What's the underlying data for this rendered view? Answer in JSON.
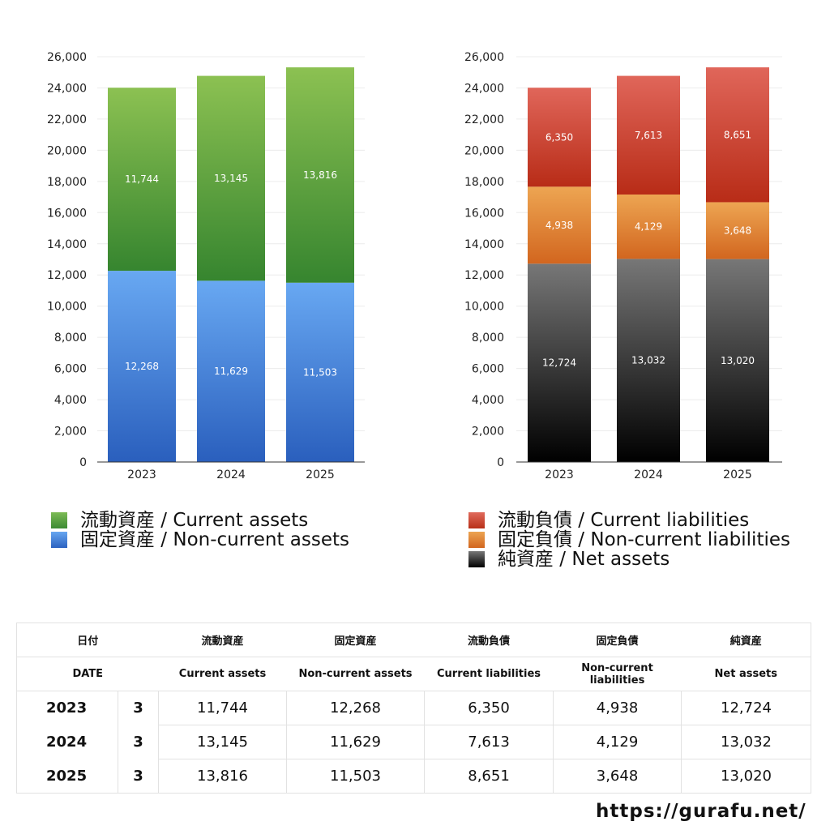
{
  "chart_data": [
    {
      "type": "bar",
      "stacked": true,
      "categories": [
        "2023",
        "2024",
        "2025"
      ],
      "ylim": [
        0,
        26000
      ],
      "yticks": [
        "0",
        "2,000",
        "4,000",
        "6,000",
        "8,000",
        "10,000",
        "12,000",
        "14,000",
        "16,000",
        "18,000",
        "20,000",
        "22,000",
        "24,000",
        "26,000"
      ],
      "grid": true,
      "series": [
        {
          "name": "固定資産 / Non-current assets",
          "values": [
            12268,
            11629,
            11503
          ],
          "labels": [
            "12,268",
            "11,629",
            "11,503"
          ],
          "colors": [
            "#68a8f2",
            "#2a5fbd"
          ]
        },
        {
          "name": "流動資産 / Current assets",
          "values": [
            11744,
            13145,
            13816
          ],
          "labels": [
            "11,744",
            "13,145",
            "13,816"
          ],
          "colors": [
            "#8cc152",
            "#36852f"
          ]
        }
      ],
      "legend": "bottom"
    },
    {
      "type": "bar",
      "stacked": true,
      "categories": [
        "2023",
        "2024",
        "2025"
      ],
      "ylim": [
        0,
        26000
      ],
      "yticks": [
        "0",
        "2,000",
        "4,000",
        "6,000",
        "8,000",
        "10,000",
        "12,000",
        "14,000",
        "16,000",
        "18,000",
        "20,000",
        "22,000",
        "24,000",
        "26,000"
      ],
      "grid": true,
      "series": [
        {
          "name": "純資産 / Net assets",
          "values": [
            12724,
            13032,
            13020
          ],
          "labels": [
            "12,724",
            "13,032",
            "13,020"
          ],
          "colors": [
            "#777777",
            "#000000"
          ]
        },
        {
          "name": "固定負債 / Non-current liabilities",
          "values": [
            4938,
            4129,
            3648
          ],
          "labels": [
            "4,938",
            "4,129",
            "3,648"
          ],
          "colors": [
            "#eda552",
            "#d2661f"
          ]
        },
        {
          "name": "流動負債 / Current liabilities",
          "values": [
            6350,
            7613,
            8651
          ],
          "labels": [
            "6,350",
            "7,613",
            "8,651"
          ],
          "colors": [
            "#e0665a",
            "#b82c17"
          ]
        }
      ],
      "legend": "bottom"
    }
  ],
  "legend_left": [
    {
      "label": "流動資産 / Current assets",
      "color": "#4c9a3e"
    },
    {
      "label": "固定資産 / Non-current assets",
      "color": "#3e7bd6"
    }
  ],
  "legend_right": [
    {
      "label": "流動負債 / Current liabilities",
      "color": "#cc4433"
    },
    {
      "label": "固定負債 / Non-current liabilities",
      "color": "#e08838"
    },
    {
      "label": "純資産 / Net assets",
      "color": "#222222"
    }
  ],
  "table": {
    "header_jp": [
      "日付",
      "流動資産",
      "固定資産",
      "流動負債",
      "固定負債",
      "純資産"
    ],
    "header_en": [
      "DATE",
      "Current assets",
      "Non-current assets",
      "Current liabilities",
      "Non-current liabilities",
      "Net assets"
    ],
    "rows": [
      {
        "year": "2023",
        "month": "3",
        "values": [
          "11,744",
          "12,268",
          "6,350",
          "4,938",
          "12,724"
        ]
      },
      {
        "year": "2024",
        "month": "3",
        "values": [
          "13,145",
          "11,629",
          "7,613",
          "4,129",
          "13,032"
        ]
      },
      {
        "year": "2025",
        "month": "3",
        "values": [
          "13,816",
          "11,503",
          "8,651",
          "3,648",
          "13,020"
        ]
      }
    ]
  },
  "footer_url": "https://gurafu.net/"
}
